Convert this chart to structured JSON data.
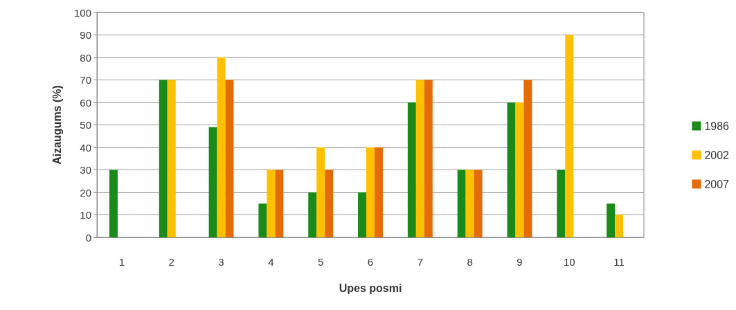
{
  "chart_data": {
    "type": "bar",
    "xlabel": "Upes posmi",
    "ylabel": "Aizaugums (%)",
    "categories": [
      "1",
      "2",
      "3",
      "4",
      "5",
      "6",
      "7",
      "8",
      "9",
      "10",
      "11"
    ],
    "series": [
      {
        "name": "1986",
        "color": "#1a8a1a",
        "values": [
          30,
          70,
          49,
          15,
          20,
          20,
          60,
          30,
          60,
          30,
          15
        ]
      },
      {
        "name": "2002",
        "color": "#ffc000",
        "values": [
          null,
          70,
          80,
          30,
          40,
          40,
          70,
          30,
          60,
          90,
          10
        ]
      },
      {
        "name": "2007",
        "color": "#e36c09",
        "values": [
          null,
          null,
          70,
          30,
          30,
          40,
          70,
          30,
          70,
          null,
          null
        ]
      }
    ],
    "ylim": [
      0,
      100
    ],
    "yticks": [
      0,
      10,
      20,
      30,
      40,
      50,
      60,
      70,
      80,
      90,
      100
    ],
    "grid": "y",
    "legend": "right"
  }
}
